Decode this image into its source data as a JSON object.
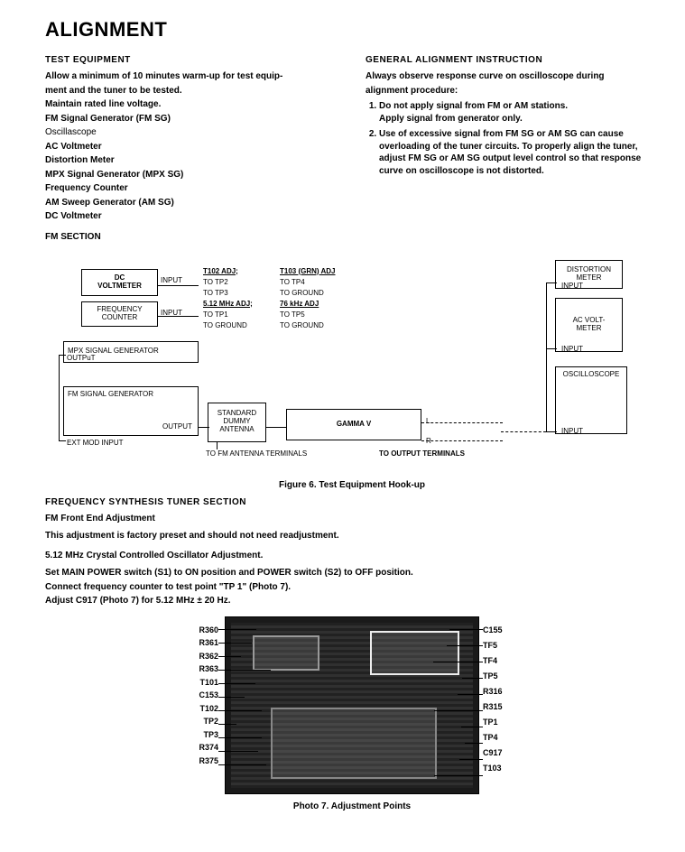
{
  "title": "ALIGNMENT",
  "left": {
    "heading": "TEST  EQUIPMENT",
    "intro1": "Allow a minimum of 10 minutes warm-up for test equip-",
    "intro2": "ment and the tuner to be tested.",
    "l1": "Maintain rated line voltage.",
    "l2": "FM Signal Generator (FM SG)",
    "l3": "Oscillascope",
    "l4": "AC Voltmeter",
    "l5": "Distortion  Meter",
    "l6": "MPX Signal Generator (MPX SG)",
    "l7": "Frequency  Counter",
    "l8": "AM Sweep Generator (AM SG)",
    "l9": "DC  Voltmeter",
    "fm_section": "FM  SECTION"
  },
  "right": {
    "heading": "GENERAL  ALIGNMENT  INSTRUCTION",
    "intro1": "Always observe response  curve on oscilloscope during",
    "intro2": "alignment  procedure:",
    "step1a": "Do not apply signal from FM or AM stations.",
    "step1b": "Apply signal from generator only.",
    "step2": "Use of excessive signal from FM SG or AM SG can cause overloading of the tuner circuits. To properly align the tuner, adjust FM SG or AM SG output level control so that response curve on oscilloscope is not  distorted."
  },
  "diagram": {
    "dc_voltmeter": "DC\nVOLTMETER",
    "freq_counter": "FREQUENCY\nCOUNTER",
    "mpx_gen": "MPX  SIGNAL  GENERATOR",
    "fm_gen": "FM  SIGNAL  GENERATOR",
    "dummy_ant": "STANDARD\nDUMMY\nANTENNA",
    "gamma": "GAMMA  V",
    "dist_meter": "DISTORTION\nMETER",
    "ac_voltmeter": "AC  VOLT-\nMETER",
    "oscope": "OSCILLOSCOPE",
    "input": "INPUT",
    "output": "OUTPUT",
    "output_small": "OUTPuT",
    "ext_mod": "EXT  MOD  INPUT",
    "to_fm_ant": "TO  FM  ANTENNA  TERMINALS",
    "to_output": "TO  OUTPUT  TERMINALS",
    "t102": "T102 ADJ;",
    "t103": "T103 (GRN) ADJ",
    "tp2": "TO TP2",
    "tp4": "TO TP4",
    "tp3": "TO TP3",
    "ground": "TO GROUND",
    "mhz512": "5.12  MHz  ADJ;",
    "khz76": "76  kHz  ADJ",
    "tp1": "TO TP1",
    "tp5": "TO TP5",
    "L": "L",
    "R": "R"
  },
  "figure6": "Figure 6. Test Equipment Hook-up",
  "freq_synth_head": "FREQUENCY  SYNTHESIS  TUNER  SECTION",
  "fm_front_end": "FM  Front  End  Adjustment",
  "factory_preset": "This adjustment is factory preset and should not need readjustment.",
  "crystal_osc": "5.12 MHz Crystal Controlled Oscillator Adjustment.",
  "set_main1": "Set MAIN POWER switch (S1) to ON position and POWER switch (S2) to OFF position.",
  "set_main2": "Connect frequency counter to test point \"TP 1\" (Photo 7).",
  "set_main3": "Adjust C917 (Photo 7) for 5.12 MHz ± 20 Hz.",
  "photo": {
    "left_labels": [
      "R360",
      "R361",
      "R362",
      "R363",
      "T101",
      "C153",
      "T102",
      "TP2",
      "TP3",
      "R374",
      "R375"
    ],
    "right_labels": [
      "C155",
      "TF5",
      "TF4",
      "TP5",
      "R316",
      "R315",
      "TP1",
      "TP4",
      "C917",
      "T103"
    ],
    "caption": "Photo 7. Adjustment Points"
  }
}
